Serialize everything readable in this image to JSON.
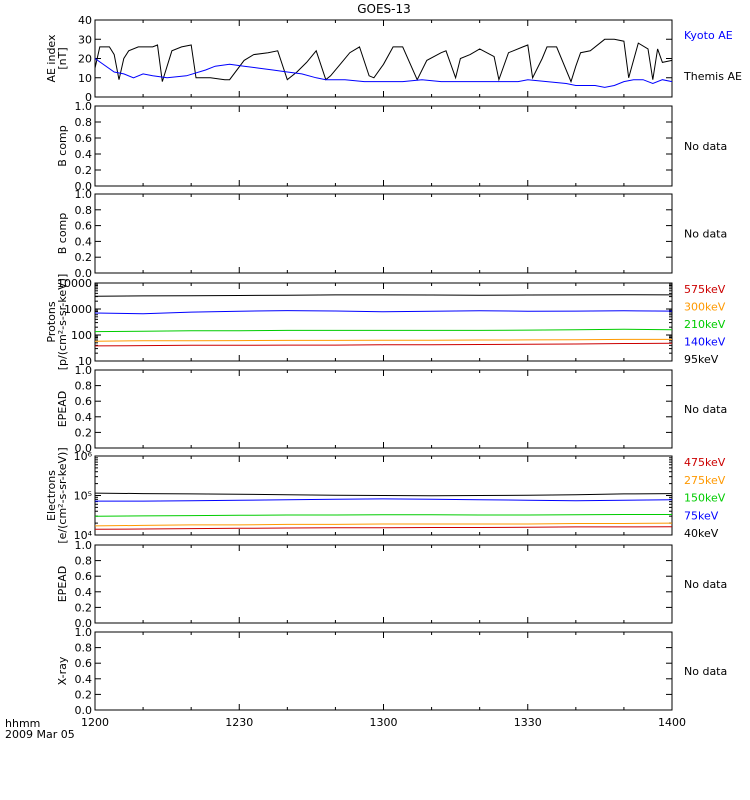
{
  "title": "GOES-13",
  "time_axis": {
    "label_line1": "hhmm",
    "label_line2": "2009 Mar 05",
    "ticks": [
      "1200",
      "1230",
      "1300",
      "1330",
      "1400"
    ],
    "tick_minutes": [
      0,
      30,
      60,
      90,
      120
    ],
    "range_minutes": [
      0,
      120
    ]
  },
  "chart_data": [
    {
      "type": "line",
      "ylabel": [
        "AE index",
        "[nT]"
      ],
      "ylim": [
        0,
        40
      ],
      "yticks": [
        "0",
        "10",
        "20",
        "30",
        "40"
      ],
      "ytick_values": [
        0,
        10,
        20,
        30,
        40
      ],
      "legend": [
        {
          "label": "Kyoto AE",
          "color": "#0000ff"
        },
        {
          "label": "Themis AE",
          "color": "#000000"
        }
      ],
      "series": [
        {
          "name": "Themis AE",
          "color": "#000000",
          "x": [
            0,
            1,
            3,
            4,
            5,
            6,
            7,
            9,
            12,
            13,
            14,
            16,
            18,
            20,
            21,
            24,
            27,
            28,
            31,
            33,
            36,
            38,
            40,
            42,
            44,
            46,
            48,
            49,
            51,
            53,
            55,
            57,
            58,
            60,
            62,
            64,
            67,
            69,
            72,
            73,
            75,
            76,
            78,
            80,
            83,
            84,
            86,
            87,
            89,
            90,
            91,
            93,
            94,
            96,
            99,
            100,
            101,
            103,
            106,
            108,
            110,
            111,
            113,
            115,
            116,
            117,
            118,
            120
          ],
          "y": [
            15,
            26,
            26,
            22,
            9,
            20,
            24,
            26,
            26,
            27,
            8,
            24,
            26,
            27,
            10,
            10,
            9,
            9,
            19,
            22,
            23,
            24,
            9,
            13,
            18,
            24,
            9,
            11,
            17,
            23,
            26,
            11,
            10,
            17,
            26,
            26,
            9,
            19,
            23,
            24,
            10,
            20,
            22,
            25,
            21,
            9,
            23,
            24,
            26,
            27,
            10,
            20,
            26,
            26,
            8,
            16,
            23,
            24,
            30,
            30,
            29,
            10,
            28,
            25,
            9,
            25,
            18,
            19
          ]
        },
        {
          "name": "Kyoto AE",
          "color": "#0000ff",
          "x": [
            0,
            4,
            6,
            8,
            10,
            12,
            15,
            19,
            23,
            25,
            28,
            31,
            34,
            37,
            40,
            43,
            46,
            48,
            52,
            56,
            60,
            64,
            68,
            72,
            76,
            80,
            84,
            88,
            90,
            94,
            98,
            100,
            104,
            106,
            108,
            110,
            112,
            114,
            116,
            118,
            120
          ],
          "y": [
            20,
            13,
            12,
            10,
            12,
            11,
            10,
            11,
            14,
            16,
            17,
            16,
            15,
            14,
            13,
            12,
            10,
            9,
            9,
            8,
            8,
            8,
            9,
            8,
            8,
            8,
            8,
            8,
            9,
            8,
            7,
            6,
            6,
            5,
            6,
            8,
            9,
            9,
            7,
            9,
            8
          ]
        }
      ]
    },
    {
      "type": "line",
      "ylabel": [
        "B comp"
      ],
      "ylim": [
        0,
        1
      ],
      "yticks": [
        "0.0",
        "0.2",
        "0.4",
        "0.6",
        "0.8",
        "1.0"
      ],
      "ytick_values": [
        0,
        0.2,
        0.4,
        0.6,
        0.8,
        1.0
      ],
      "legend": [
        {
          "label": "No data",
          "color": "#000000"
        }
      ],
      "series": []
    },
    {
      "type": "line",
      "ylabel": [
        "B comp"
      ],
      "ylim": [
        0,
        1
      ],
      "yticks": [
        "0.0",
        "0.2",
        "0.4",
        "0.6",
        "0.8",
        "1.0"
      ],
      "ytick_values": [
        0,
        0.2,
        0.4,
        0.6,
        0.8,
        1.0
      ],
      "legend": [
        {
          "label": "No data",
          "color": "#000000"
        }
      ],
      "series": []
    },
    {
      "type": "line",
      "ylabel": [
        "Protons",
        "[p/(cm²-s-sr-keV)]"
      ],
      "log": true,
      "ylim": [
        10,
        10000
      ],
      "yticks": [
        "10",
        "100",
        "1000",
        "10000"
      ],
      "ytick_values": [
        10,
        100,
        1000,
        10000
      ],
      "legend": [
        {
          "label": "575keV",
          "color": "#cc0000"
        },
        {
          "label": "300keV",
          "color": "#ff9900"
        },
        {
          "label": "210keV",
          "color": "#00cc00"
        },
        {
          "label": "140keV",
          "color": "#0000ff"
        },
        {
          "label": "95keV",
          "color": "#000000"
        }
      ],
      "series": [
        {
          "name": "95keV",
          "color": "#000000",
          "x": [
            0,
            10,
            20,
            30,
            40,
            50,
            60,
            70,
            80,
            90,
            100,
            110,
            120
          ],
          "y": [
            3100,
            3200,
            3250,
            3300,
            3400,
            3500,
            3500,
            3450,
            3400,
            3450,
            3500,
            3550,
            3500
          ]
        },
        {
          "name": "140keV",
          "color": "#0000ff",
          "x": [
            0,
            10,
            20,
            30,
            40,
            50,
            60,
            70,
            80,
            90,
            100,
            110,
            120
          ],
          "y": [
            700,
            660,
            760,
            820,
            870,
            840,
            780,
            820,
            860,
            820,
            830,
            850,
            830
          ]
        },
        {
          "name": "210keV",
          "color": "#00cc00",
          "x": [
            0,
            10,
            20,
            30,
            40,
            50,
            60,
            70,
            80,
            90,
            100,
            110,
            120
          ],
          "y": [
            135,
            140,
            145,
            145,
            150,
            150,
            150,
            150,
            150,
            155,
            160,
            165,
            160
          ]
        },
        {
          "name": "300keV",
          "color": "#ff9900",
          "x": [
            0,
            10,
            20,
            30,
            40,
            50,
            60,
            70,
            80,
            90,
            100,
            110,
            120
          ],
          "y": [
            58,
            60,
            60,
            61,
            62,
            62,
            63,
            63,
            64,
            65,
            66,
            68,
            68
          ]
        },
        {
          "name": "575keV",
          "color": "#cc0000",
          "x": [
            0,
            10,
            20,
            30,
            40,
            50,
            60,
            70,
            80,
            90,
            100,
            110,
            120
          ],
          "y": [
            38,
            39,
            40,
            40,
            41,
            41,
            42,
            42,
            43,
            44,
            45,
            47,
            48
          ]
        }
      ]
    },
    {
      "type": "line",
      "ylabel": [
        "EPEAD"
      ],
      "ylim": [
        0,
        1
      ],
      "yticks": [
        "0.0",
        "0.2",
        "0.4",
        "0.6",
        "0.8",
        "1.0"
      ],
      "ytick_values": [
        0,
        0.2,
        0.4,
        0.6,
        0.8,
        1.0
      ],
      "legend": [
        {
          "label": "No data",
          "color": "#000000"
        }
      ],
      "series": []
    },
    {
      "type": "line",
      "ylabel": [
        "Electrons",
        "[e/(cm²-s-sr-keV)]"
      ],
      "log": true,
      "ylim": [
        10000,
        1000000
      ],
      "yticks": [
        "10⁴",
        "10⁵",
        "10⁶"
      ],
      "ytick_values": [
        10000,
        100000,
        1000000
      ],
      "legend": [
        {
          "label": "475keV",
          "color": "#cc0000"
        },
        {
          "label": "275keV",
          "color": "#ff9900"
        },
        {
          "label": "150keV",
          "color": "#00cc00"
        },
        {
          "label": "75keV",
          "color": "#0000ff"
        },
        {
          "label": "40keV",
          "color": "#000000"
        }
      ],
      "series": [
        {
          "name": "40keV",
          "color": "#000000",
          "x": [
            0,
            10,
            20,
            30,
            40,
            50,
            60,
            70,
            80,
            90,
            100,
            110,
            120
          ],
          "y": [
            115000,
            112000,
            110000,
            108000,
            105000,
            102000,
            100000,
            98000,
            100000,
            102000,
            105000,
            110000,
            112000
          ]
        },
        {
          "name": "75keV",
          "color": "#0000ff",
          "x": [
            0,
            10,
            20,
            30,
            40,
            50,
            60,
            70,
            80,
            90,
            100,
            110,
            120
          ],
          "y": [
            72000,
            72000,
            74000,
            76000,
            78000,
            80000,
            82000,
            80000,
            78000,
            76000,
            74000,
            76000,
            78000
          ]
        },
        {
          "name": "150keV",
          "color": "#00cc00",
          "x": [
            0,
            10,
            20,
            30,
            40,
            50,
            60,
            70,
            80,
            90,
            100,
            110,
            120
          ],
          "y": [
            30000,
            30500,
            31000,
            31500,
            32000,
            32000,
            32500,
            32500,
            32000,
            32000,
            32500,
            33000,
            33000
          ]
        },
        {
          "name": "275keV",
          "color": "#ff9900",
          "x": [
            0,
            10,
            20,
            30,
            40,
            50,
            60,
            70,
            80,
            90,
            100,
            110,
            120
          ],
          "y": [
            17000,
            17500,
            18000,
            18000,
            18500,
            18500,
            19000,
            19000,
            19000,
            19000,
            19500,
            19500,
            20000
          ]
        },
        {
          "name": "475keV",
          "color": "#cc0000",
          "x": [
            0,
            10,
            20,
            30,
            40,
            50,
            60,
            70,
            80,
            90,
            100,
            110,
            120
          ],
          "y": [
            14000,
            14200,
            14500,
            14800,
            15000,
            15200,
            15200,
            15500,
            15500,
            15800,
            16000,
            16000,
            16200
          ]
        }
      ]
    },
    {
      "type": "line",
      "ylabel": [
        "EPEAD"
      ],
      "ylim": [
        0,
        1
      ],
      "yticks": [
        "0.0",
        "0.2",
        "0.4",
        "0.6",
        "0.8",
        "1.0"
      ],
      "ytick_values": [
        0,
        0.2,
        0.4,
        0.6,
        0.8,
        1.0
      ],
      "legend": [
        {
          "label": "No data",
          "color": "#000000"
        }
      ],
      "series": []
    },
    {
      "type": "line",
      "ylabel": [
        "X-ray"
      ],
      "ylim": [
        0,
        1
      ],
      "yticks": [
        "0.0",
        "0.2",
        "0.4",
        "0.6",
        "0.8",
        "1.0"
      ],
      "ytick_values": [
        0,
        0.2,
        0.4,
        0.6,
        0.8,
        1.0
      ],
      "legend": [
        {
          "label": "No data",
          "color": "#000000"
        }
      ],
      "series": []
    }
  ]
}
